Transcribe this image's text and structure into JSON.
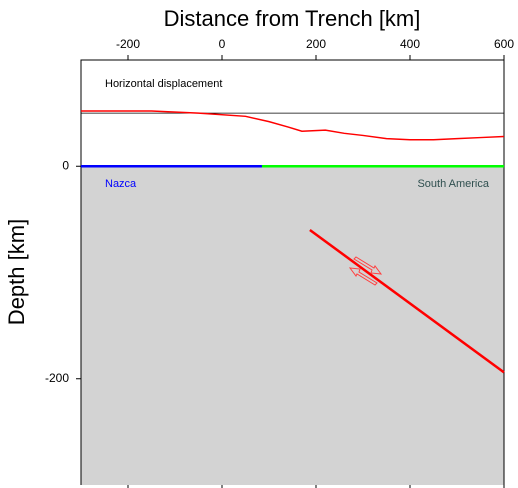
{
  "chart_data": {
    "type": "line",
    "x_label": "Distance from Trench [km]",
    "y_label": "Depth [km]",
    "xlim": [
      -300,
      600
    ],
    "xticks": [
      -200,
      0,
      200,
      400,
      600
    ],
    "ylim": [
      -300,
      100
    ],
    "yticks": [
      -200,
      0
    ],
    "displacement": {
      "label": "Horizontal displacement",
      "color": "#ff0000",
      "x": [
        -300,
        -150,
        -50,
        50,
        100,
        140,
        170,
        220,
        260,
        300,
        350,
        400,
        450,
        500,
        550,
        600
      ],
      "values": [
        52,
        52,
        50,
        47,
        42,
        37,
        33,
        34,
        31,
        29,
        26,
        25,
        25,
        26,
        27,
        28
      ],
      "reference": 50
    },
    "plates": [
      {
        "name": "Nazca",
        "color": "#0000ff",
        "label_color": "#0000ff",
        "x": [
          -300,
          85
        ]
      },
      {
        "name": "South America",
        "color": "#00ff00",
        "label_color": "#2f4f4f",
        "x": [
          85,
          600
        ]
      }
    ],
    "slab": {
      "color": "#ff0000",
      "x": [
        187,
        600
      ],
      "values": [
        -60,
        -194
      ]
    },
    "background": "#d3d3d3"
  }
}
